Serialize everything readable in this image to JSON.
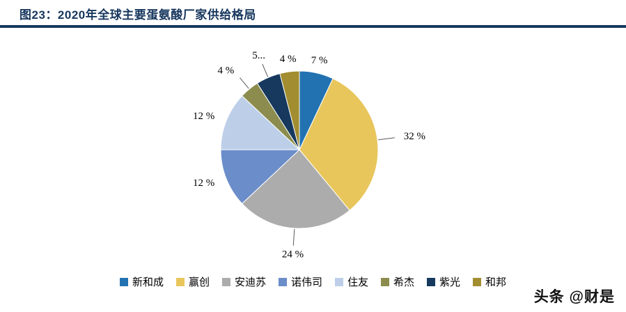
{
  "header": {
    "title": "图23：2020年全球主要蛋氨酸厂家供给格局",
    "accent_color": "#17375E"
  },
  "chart_data": {
    "type": "pie",
    "title": "2020年全球主要蛋氨酸厂家供给格局",
    "start_angle_deg": 0,
    "direction": "clockwise",
    "legend_position": "bottom",
    "slices": [
      {
        "name": "新和成",
        "value": 7,
        "label": "7 %",
        "color": "#2272B2",
        "leader": false
      },
      {
        "name": "赢创",
        "value": 32,
        "label": "32 %",
        "color": "#E8C65C",
        "leader": true
      },
      {
        "name": "安迪苏",
        "value": 24,
        "label": "24 %",
        "color": "#ACACAC",
        "leader": true
      },
      {
        "name": "诺伟司",
        "value": 12,
        "label": "12 %",
        "color": "#6B8DC9",
        "leader": false
      },
      {
        "name": "住友",
        "value": 12,
        "label": "12 %",
        "color": "#BDCFE8",
        "leader": false
      },
      {
        "name": "希杰",
        "value": 4,
        "label": "4 %",
        "color": "#8C8C4E",
        "leader": true
      },
      {
        "name": "紫光",
        "value": 5,
        "label": "5...",
        "color": "#16395D",
        "leader": true
      },
      {
        "name": "和邦",
        "value": 4,
        "label": "4 %",
        "color": "#A28D30",
        "leader": false
      }
    ]
  },
  "watermark": {
    "text": "头条 @财是"
  }
}
